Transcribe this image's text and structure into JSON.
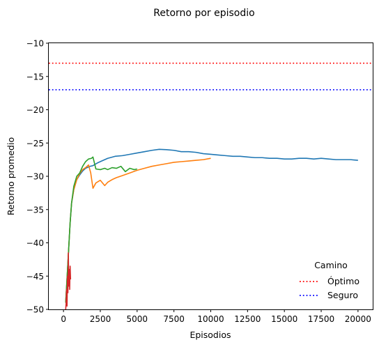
{
  "chart_data": {
    "type": "line",
    "title": "Retorno por episodio",
    "xlabel": "Episodios",
    "ylabel": "Retorno promedio",
    "xlim": [
      -1000,
      21000
    ],
    "ylim": [
      -50,
      -10
    ],
    "x_ticks": [
      0,
      2500,
      5000,
      7500,
      10000,
      12500,
      15000,
      17500,
      20000
    ],
    "y_ticks": [
      -10,
      -15,
      -20,
      -25,
      -30,
      -35,
      -40,
      -45,
      -50
    ],
    "grid": false,
    "legend": {
      "title": "Camino",
      "placement": "lower-right",
      "entries": [
        "Óptimo",
        "Seguro"
      ]
    },
    "reference_lines": [
      {
        "name": "Óptimo",
        "y": -13,
        "color": "#ff0000",
        "style": "dotted"
      },
      {
        "name": "Seguro",
        "y": -17,
        "color": "#0000ff",
        "style": "dotted"
      }
    ],
    "series": [
      {
        "color": "#1f77b4",
        "x": [
          150,
          250,
          350,
          450,
          550,
          700,
          900,
          1100,
          1300,
          1500,
          1800,
          2000,
          2300,
          2600,
          3000,
          3500,
          4000,
          4500,
          5000,
          5500,
          6000,
          6500,
          7000,
          7500,
          8000,
          8500,
          9000,
          9500,
          10000,
          10500,
          11000,
          11500,
          12000,
          12500,
          13000,
          13500,
          14000,
          14500,
          15000,
          15500,
          16000,
          16500,
          17000,
          17500,
          18000,
          18500,
          19000,
          19500,
          20000
        ],
        "y": [
          -49,
          -45,
          -41,
          -37,
          -34,
          -32,
          -30.5,
          -29.8,
          -29.2,
          -28.8,
          -28.5,
          -28.4,
          -28.0,
          -27.7,
          -27.3,
          -27.0,
          -26.9,
          -26.7,
          -26.5,
          -26.3,
          -26.1,
          -25.95,
          -26.0,
          -26.1,
          -26.3,
          -26.3,
          -26.4,
          -26.6,
          -26.7,
          -26.8,
          -26.9,
          -27.0,
          -27.0,
          -27.1,
          -27.2,
          -27.2,
          -27.3,
          -27.3,
          -27.4,
          -27.4,
          -27.3,
          -27.3,
          -27.4,
          -27.3,
          -27.4,
          -27.5,
          -27.5,
          -27.5,
          -27.6
        ]
      },
      {
        "color": "#ff7f0e",
        "x": [
          150,
          250,
          350,
          450,
          550,
          700,
          900,
          1100,
          1300,
          1500,
          1700,
          1850,
          2000,
          2200,
          2500,
          2800,
          3000,
          3300,
          3600,
          4000,
          4500,
          5000,
          5500,
          6000,
          6500,
          7000,
          7500,
          8000,
          8500,
          9000,
          9500,
          10000
        ],
        "y": [
          -49,
          -45,
          -41,
          -37,
          -34,
          -32,
          -30.5,
          -29.6,
          -29.0,
          -28.7,
          -28.3,
          -29.5,
          -31.8,
          -31.0,
          -30.6,
          -31.4,
          -30.9,
          -30.5,
          -30.2,
          -29.9,
          -29.5,
          -29.1,
          -28.8,
          -28.5,
          -28.3,
          -28.1,
          -27.9,
          -27.8,
          -27.7,
          -27.6,
          -27.5,
          -27.3
        ]
      },
      {
        "color": "#2ca02c",
        "x": [
          150,
          250,
          350,
          450,
          550,
          700,
          900,
          1100,
          1300,
          1500,
          1700,
          1900,
          2000,
          2200,
          2500,
          2800,
          3000,
          3300,
          3600,
          3900,
          4200,
          4500,
          4800,
          5000
        ],
        "y": [
          -49,
          -45,
          -41,
          -37,
          -34,
          -31.5,
          -30,
          -29.5,
          -28.5,
          -27.8,
          -27.4,
          -27.3,
          -27.1,
          -28.9,
          -29.0,
          -28.8,
          -29.0,
          -28.7,
          -28.8,
          -28.5,
          -29.3,
          -28.8,
          -29.0,
          -28.9
        ]
      },
      {
        "color": "#d62728",
        "x": [
          150,
          180,
          210,
          240,
          270,
          300,
          330,
          360,
          390,
          420,
          450,
          480
        ],
        "y": [
          -50,
          -49,
          -47,
          -49.5,
          -45,
          -47.5,
          -41.5,
          -46.5,
          -44,
          -47,
          -43.5,
          -45.5
        ]
      }
    ]
  }
}
